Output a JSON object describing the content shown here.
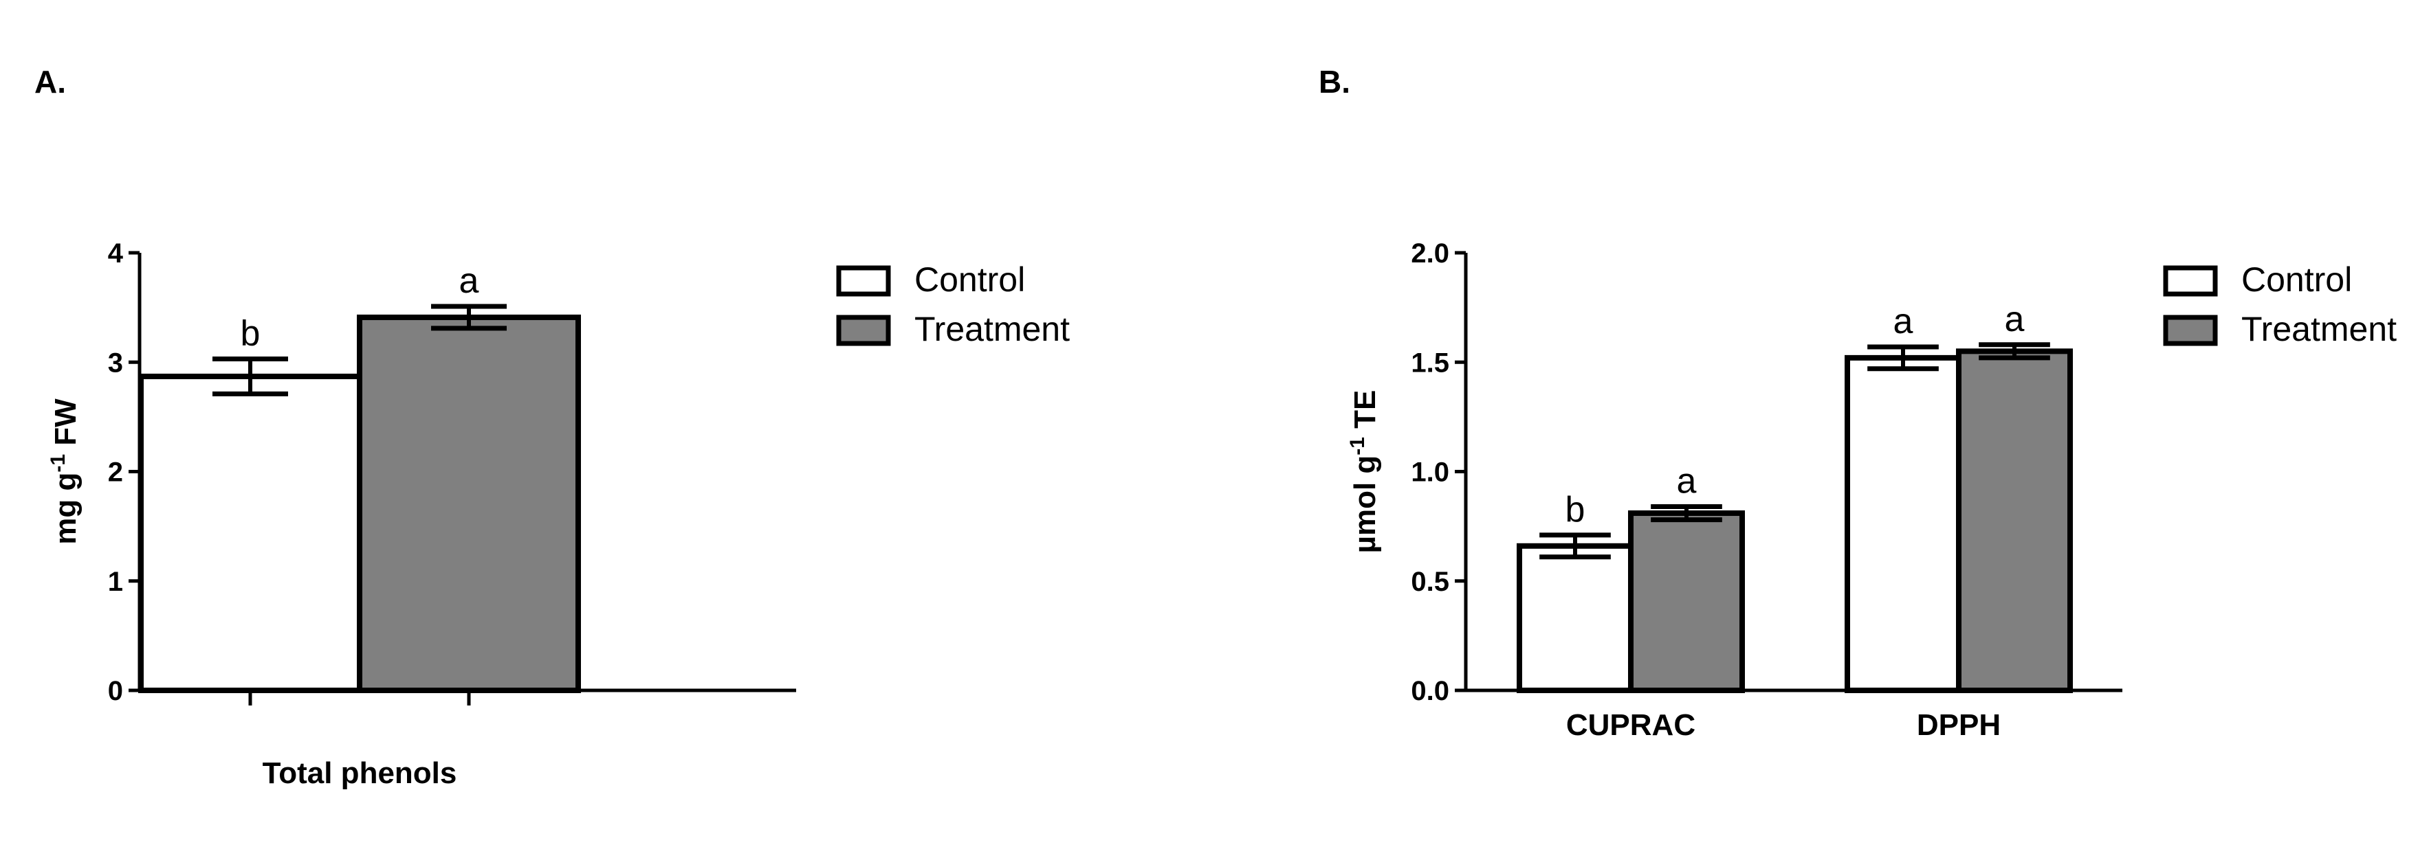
{
  "chart_data": [
    {
      "type": "bar",
      "panel": "A.",
      "categories": [
        "Total phenols"
      ],
      "series": [
        {
          "name": "Control",
          "values": [
            2.87
          ],
          "errors": [
            0.16
          ],
          "sig": [
            "b"
          ],
          "color": "#ffffff"
        },
        {
          "name": "Treatment",
          "values": [
            3.41
          ],
          "errors": [
            0.1
          ],
          "sig": [
            "a"
          ],
          "color": "#808080"
        }
      ],
      "ylabel": {
        "main": "mg g",
        "sup": "-1",
        "tail": " FW"
      },
      "ylim": [
        0,
        4
      ],
      "yticks": [
        "0",
        "1",
        "2",
        "3",
        "4"
      ],
      "grid": false,
      "legend_position": "right"
    },
    {
      "type": "bar",
      "panel": "B.",
      "categories": [
        "CUPRAC",
        "DPPH"
      ],
      "series": [
        {
          "name": "Control",
          "values": [
            0.66,
            1.52
          ],
          "errors": [
            0.05,
            0.05
          ],
          "sig": [
            "b",
            "a"
          ],
          "color": "#ffffff"
        },
        {
          "name": "Treatment",
          "values": [
            0.81,
            1.55
          ],
          "errors": [
            0.03,
            0.03
          ],
          "sig": [
            "a",
            "a"
          ],
          "color": "#808080"
        }
      ],
      "ylabel": {
        "main": "µmol g",
        "sup": "-1",
        "tail": " TE"
      },
      "ylim": [
        0,
        2
      ],
      "yticks": [
        "0.0",
        "0.5",
        "1.0",
        "1.5",
        "2.0"
      ],
      "grid": false,
      "legend_position": "right"
    }
  ]
}
